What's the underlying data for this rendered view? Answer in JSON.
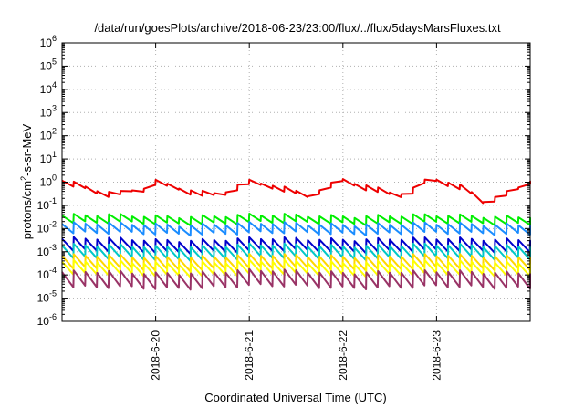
{
  "chart_data": {
    "type": "line",
    "title": "/data/run/goesPlots/archive/2018-06-23/23:00/flux/../flux/5daysMarsFluxes.txt",
    "xlabel": "Coordinated Universal Time (UTC)",
    "ylabel": "protons/cm²-s-sr-MeV",
    "ylabel_parts": {
      "pre": "protons/cm",
      "sup": "2",
      "post": "-s-sr-MeV"
    },
    "yscale": "log",
    "ylim_exponent": [
      -6,
      6
    ],
    "yticks": [
      {
        "base": "10",
        "exp": "-6"
      },
      {
        "base": "10",
        "exp": "-5"
      },
      {
        "base": "10",
        "exp": "-4"
      },
      {
        "base": "10",
        "exp": "-3"
      },
      {
        "base": "10",
        "exp": "-2"
      },
      {
        "base": "10",
        "exp": "-1"
      },
      {
        "base": "10",
        "exp": "0"
      },
      {
        "base": "10",
        "exp": "1"
      },
      {
        "base": "10",
        "exp": "2"
      },
      {
        "base": "10",
        "exp": "3"
      },
      {
        "base": "10",
        "exp": "4"
      },
      {
        "base": "10",
        "exp": "5"
      },
      {
        "base": "10",
        "exp": "6"
      }
    ],
    "xlim_days": [
      19.0,
      24.0
    ],
    "xticks": [
      {
        "day": 20,
        "label": "2018-6-20"
      },
      {
        "day": 21,
        "label": "2018-6-21"
      },
      {
        "day": 22,
        "label": "2018-6-22"
      },
      {
        "day": 23,
        "label": "2018-6-23"
      }
    ],
    "grid": true,
    "legend": "none",
    "sawtooth_period_hours": 3,
    "series": [
      {
        "color": "#ee0000",
        "stroke_width": 2,
        "base_log": [
          [
            19.0,
            0.0
          ],
          [
            19.2,
            -0.2
          ],
          [
            19.35,
            -0.42
          ],
          [
            19.55,
            -0.6
          ],
          [
            19.75,
            -0.4
          ],
          [
            19.9,
            -0.3
          ],
          [
            20.0,
            0.0
          ],
          [
            20.2,
            -0.2
          ],
          [
            20.45,
            -0.45
          ],
          [
            20.7,
            -0.55
          ],
          [
            20.85,
            -0.25
          ],
          [
            21.0,
            -0.05
          ],
          [
            21.3,
            -0.25
          ],
          [
            21.55,
            -0.55
          ],
          [
            21.65,
            -0.65
          ],
          [
            21.8,
            -0.25
          ],
          [
            22.0,
            0.1
          ],
          [
            22.3,
            -0.25
          ],
          [
            22.55,
            -0.55
          ],
          [
            22.7,
            -0.55
          ],
          [
            22.85,
            -0.05
          ],
          [
            23.0,
            0.05
          ],
          [
            23.3,
            -0.3
          ],
          [
            23.5,
            -0.85
          ],
          [
            23.65,
            -0.65
          ],
          [
            23.85,
            -0.3
          ],
          [
            24.0,
            0.05
          ]
        ],
        "amp": 0.14
      },
      {
        "color": "#00ee00",
        "stroke_width": 2,
        "base_log": [
          [
            19.0,
            -1.6
          ],
          [
            20.0,
            -1.62
          ],
          [
            21.0,
            -1.6
          ],
          [
            22.0,
            -1.6
          ],
          [
            23.0,
            -1.62
          ],
          [
            24.0,
            -1.62
          ]
        ],
        "amp": 0.32
      },
      {
        "color": "#1a8cff",
        "stroke_width": 2,
        "base_log": [
          [
            19.0,
            -2.0
          ],
          [
            20.0,
            -2.02
          ],
          [
            21.0,
            -2.0
          ],
          [
            22.0,
            -2.0
          ],
          [
            23.0,
            -2.02
          ],
          [
            24.0,
            -2.0
          ]
        ],
        "amp": 0.4
      },
      {
        "color": "#0000cc",
        "stroke_width": 2,
        "base_log": [
          [
            19.0,
            -2.7
          ],
          [
            20.0,
            -2.75
          ],
          [
            21.0,
            -2.72
          ],
          [
            22.0,
            -2.7
          ],
          [
            23.0,
            -2.72
          ],
          [
            24.0,
            -2.7
          ]
        ],
        "amp": 0.52
      },
      {
        "color": "#00c8c8",
        "stroke_width": 2,
        "base_log": [
          [
            19.0,
            -3.0
          ],
          [
            20.0,
            -3.05
          ],
          [
            21.0,
            -3.0
          ],
          [
            22.0,
            -3.0
          ],
          [
            23.0,
            -3.0
          ],
          [
            24.0,
            -3.0
          ]
        ],
        "amp": 0.55
      },
      {
        "color": "#ffd700",
        "stroke_width": 2,
        "base_log": [
          [
            19.0,
            -3.45
          ],
          [
            20.0,
            -3.5
          ],
          [
            21.0,
            -3.45
          ],
          [
            22.0,
            -3.45
          ],
          [
            23.0,
            -3.45
          ],
          [
            24.0,
            -3.45
          ]
        ],
        "amp": 0.55
      },
      {
        "color": "#ffff00",
        "stroke_width": 2,
        "base_log": [
          [
            19.0,
            -3.7
          ],
          [
            20.0,
            -3.75
          ],
          [
            21.0,
            -3.7
          ],
          [
            22.0,
            -3.72
          ],
          [
            23.0,
            -3.72
          ],
          [
            24.0,
            -3.72
          ]
        ],
        "amp": 0.55
      },
      {
        "color": "#993366",
        "stroke_width": 2,
        "base_log": [
          [
            19.0,
            -4.2
          ],
          [
            20.0,
            -4.25
          ],
          [
            21.0,
            -4.15
          ],
          [
            22.0,
            -4.2
          ],
          [
            23.0,
            -4.2
          ],
          [
            24.0,
            -4.2
          ]
        ],
        "amp": 0.65
      }
    ]
  }
}
